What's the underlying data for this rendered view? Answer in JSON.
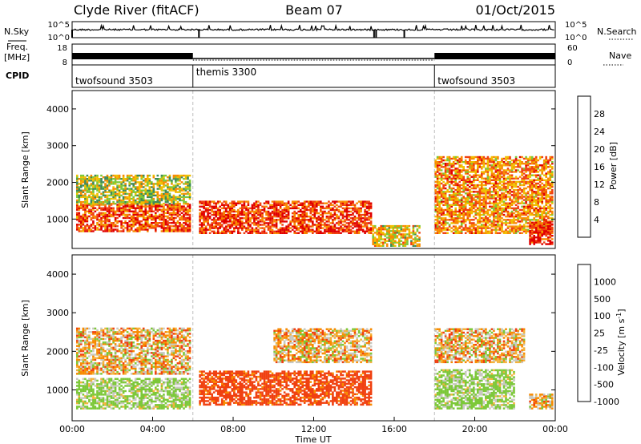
{
  "header": {
    "station": "Clyde River (fitACF)",
    "beam": "Beam 07",
    "date": "01/Oct/2015"
  },
  "panels": {
    "nsky": {
      "label": "N.Sky",
      "ticks_left": [
        "10^5",
        "10^0"
      ],
      "ticks_right": [
        "10^5",
        "10^0"
      ],
      "right_label": "N.Search"
    },
    "freq": {
      "label_top": "Freq.",
      "label_unit": "[MHz]",
      "ticks_left": [
        "18",
        "8"
      ],
      "ticks_right": [
        "60",
        "0"
      ],
      "right_label": "Nave"
    },
    "cpid": {
      "label": "CPID",
      "segments": [
        {
          "name": "twofsound 3503",
          "start_h": 0,
          "end_h": 6
        },
        {
          "name": "themis 3300",
          "start_h": 6,
          "end_h": 18
        },
        {
          "name": "twofsound 3503",
          "start_h": 18,
          "end_h": 24
        }
      ]
    }
  },
  "colors": {
    "power": [
      "#0010ff",
      "#2d4f9e",
      "#3f8a5a",
      "#7cc838",
      "#f0c000",
      "#f88a00",
      "#f04010",
      "#e00000"
    ],
    "velocity": [
      "#e00000",
      "#f04010",
      "#f88a00",
      "#f3b23a",
      "#c8c8c0",
      "#7cc838",
      "#3f8a5a",
      "#2d4f9e"
    ]
  },
  "chart_data": [
    {
      "type": "heatmap",
      "name": "power",
      "ylabel": "Slant Range [km]",
      "xlabel": "",
      "ylim": [
        200,
        4500
      ],
      "xlim": [
        0,
        24
      ],
      "y_ticks": [
        1000,
        2000,
        3000,
        4000
      ],
      "colorbar": {
        "label": "Power [dB]",
        "ticks": [
          "4",
          "8",
          "12",
          "16",
          "20",
          "24",
          "28"
        ],
        "range": [
          0,
          32
        ]
      },
      "description_bands": [
        {
          "t": [
            0.2,
            5.8
          ],
          "range": [
            650,
            1400
          ],
          "value_db": 26
        },
        {
          "t": [
            0.2,
            5.8
          ],
          "range": [
            1400,
            2200
          ],
          "value_db": 16
        },
        {
          "t": [
            6.3,
            14.8
          ],
          "range": [
            600,
            1500
          ],
          "value_db": 27
        },
        {
          "t": [
            14.9,
            17.3
          ],
          "range": [
            250,
            800
          ],
          "value_db": 18
        },
        {
          "t": [
            18.0,
            23.9
          ],
          "range": [
            600,
            2700
          ],
          "value_db": 22
        },
        {
          "t": [
            22.7,
            23.9
          ],
          "range": [
            300,
            900
          ],
          "value_db": 28
        }
      ]
    },
    {
      "type": "heatmap",
      "name": "velocity",
      "ylabel": "Slant Range [km]",
      "xlabel": "Time UT",
      "ylim": [
        200,
        4500
      ],
      "xlim": [
        0,
        24
      ],
      "y_ticks": [
        1000,
        2000,
        3000,
        4000
      ],
      "x_ticks": [
        "00:00",
        "04:00",
        "08:00",
        "12:00",
        "16:00",
        "20:00",
        "00:00"
      ],
      "colorbar": {
        "label": "Velocity [m s^-1]",
        "ticks": [
          "1000",
          "500",
          "100",
          "25",
          "-25",
          "-100",
          "-500",
          "-1000"
        ]
      },
      "description_bands": [
        {
          "t": [
            0.2,
            5.8
          ],
          "range": [
            500,
            1300
          ],
          "value_ms": 150
        },
        {
          "t": [
            0.2,
            5.8
          ],
          "range": [
            1400,
            2600
          ],
          "value_ms": 0
        },
        {
          "t": [
            6.3,
            14.8
          ],
          "range": [
            600,
            1500
          ],
          "value_ms": -200
        },
        {
          "t": [
            10.0,
            14.8
          ],
          "range": [
            1700,
            2600
          ],
          "value_ms": 0
        },
        {
          "t": [
            18.0,
            22.0
          ],
          "range": [
            500,
            1500
          ],
          "value_ms": 150
        },
        {
          "t": [
            18.0,
            22.5
          ],
          "range": [
            1700,
            2600
          ],
          "value_ms": 0
        },
        {
          "t": [
            22.7,
            23.9
          ],
          "range": [
            500,
            900
          ],
          "value_ms": 0
        }
      ]
    }
  ]
}
